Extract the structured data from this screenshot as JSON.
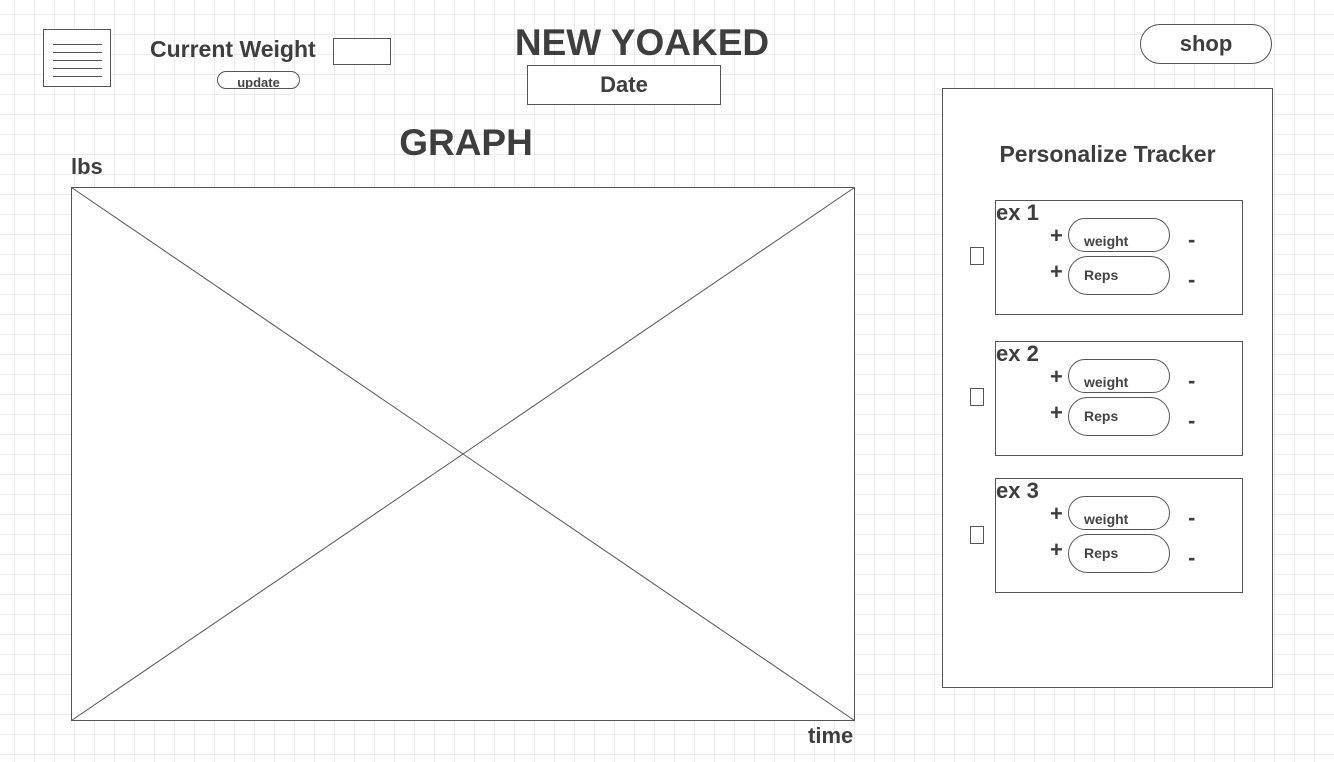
{
  "header": {
    "current_weight_label": "Current Weight",
    "current_weight_value": "",
    "update_label": "update",
    "app_title": "NEW YOAKED",
    "date_label": "Date",
    "shop_label": "shop"
  },
  "graph": {
    "title": "GRAPH",
    "y_label": "lbs",
    "x_label": "time"
  },
  "tracker": {
    "title": "Personalize Tracker",
    "exercises": [
      {
        "label": "ex 1",
        "weight_label": "weight",
        "reps_label": "Reps",
        "plus": "+",
        "minus": "-"
      },
      {
        "label": "ex 2",
        "weight_label": "weight",
        "reps_label": "Reps",
        "plus": "+",
        "minus": "-"
      },
      {
        "label": "ex 3",
        "weight_label": "weight",
        "reps_label": "Reps",
        "plus": "+",
        "minus": "-"
      }
    ]
  },
  "icons": {
    "menu": "hamburger-menu-icon",
    "graph_placeholder": "image-placeholder-icon"
  },
  "colors": {
    "stroke": "#555555",
    "text": "#3e3e3e",
    "grid": "#ececec"
  }
}
